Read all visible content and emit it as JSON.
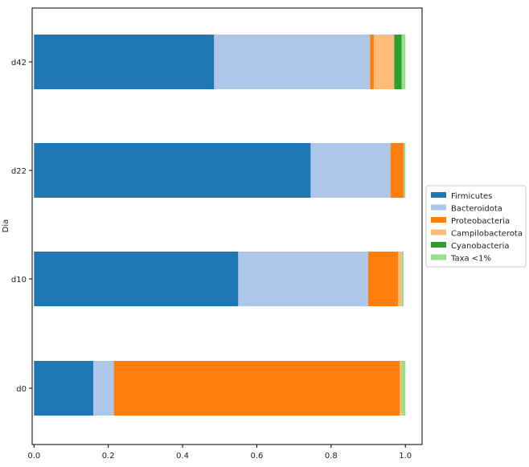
{
  "chart_data": {
    "type": "bar",
    "orientation": "horizontal",
    "stacked": true,
    "categories": [
      "d0",
      "d10",
      "d22",
      "d42"
    ],
    "ylabel": "Dia",
    "xlabel": "",
    "xlim": [
      0.0,
      1.03
    ],
    "xticks": [
      "0.0",
      "0.2",
      "0.4",
      "0.6",
      "0.8",
      "1.0"
    ],
    "grid": false,
    "legend_position": "right",
    "series": [
      {
        "name": "Firmicutes",
        "color": "#1f77b4",
        "values": [
          0.16,
          0.55,
          0.745,
          0.485
        ]
      },
      {
        "name": "Bacteroidota",
        "color": "#aec7e8",
        "values": [
          0.055,
          0.35,
          0.215,
          0.42
        ]
      },
      {
        "name": "Proteobacteria",
        "color": "#ff7f0e",
        "values": [
          0.77,
          0.08,
          0.035,
          0.01
        ]
      },
      {
        "name": "Campilobacterota",
        "color": "#ffbb78",
        "values": [
          0.005,
          0.01,
          0.0,
          0.055
        ]
      },
      {
        "name": "Cyanobacteria",
        "color": "#2ca02c",
        "values": [
          0.0,
          0.0,
          0.0,
          0.02
        ]
      },
      {
        "name": "Taxa <1%",
        "color": "#98df8a",
        "values": [
          0.01,
          0.005,
          0.005,
          0.01
        ]
      }
    ]
  }
}
